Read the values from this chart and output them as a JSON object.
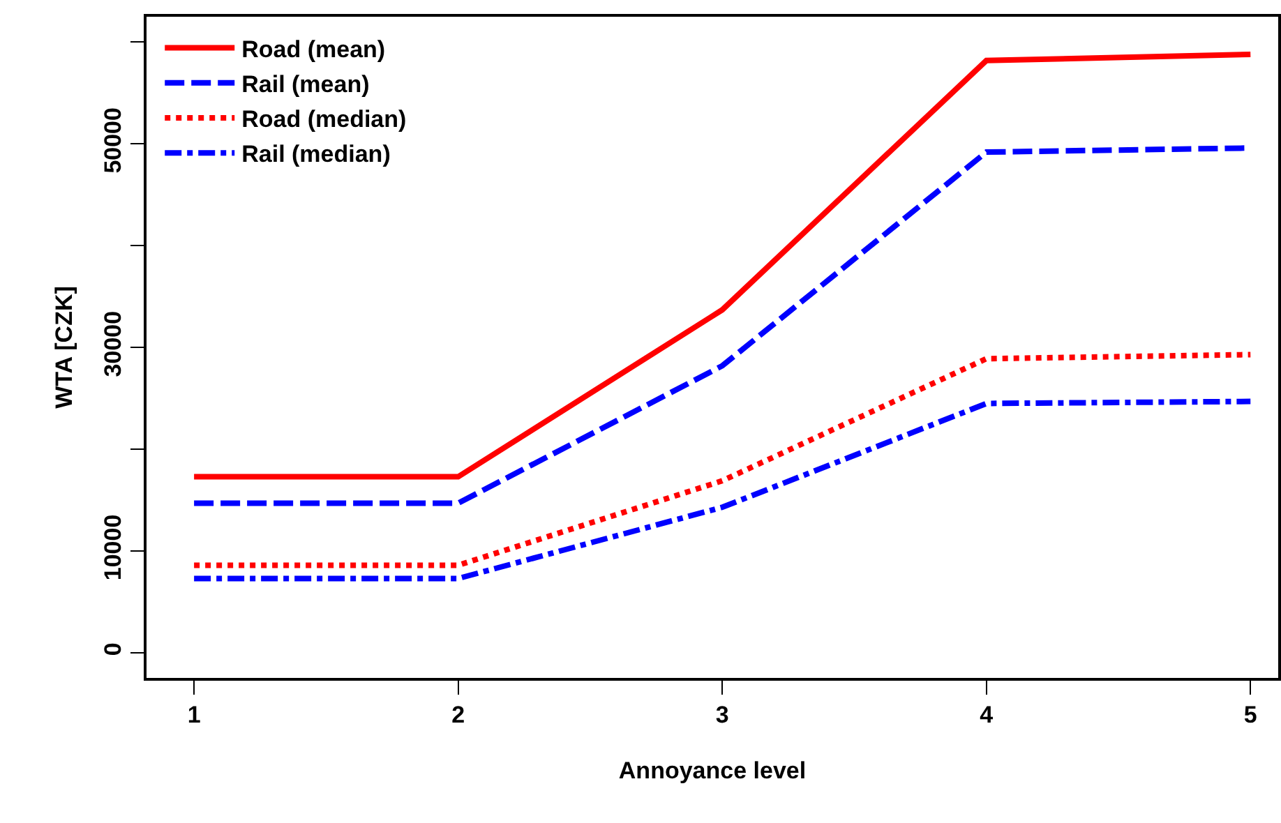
{
  "chart_data": {
    "type": "line",
    "xlabel": "Annoyance level",
    "ylabel": "WTA [CZK]",
    "x": [
      1,
      2,
      3,
      4,
      5
    ],
    "series": [
      {
        "name": "Road (mean)",
        "color": "#ff0000",
        "line_style": "solid",
        "values": [
          17300,
          17300,
          33700,
          58200,
          58800
        ]
      },
      {
        "name": "Rail (mean)",
        "color": "#0000ff",
        "line_style": "dashed",
        "values": [
          14700,
          14700,
          28200,
          49200,
          49600
        ]
      },
      {
        "name": "Road (median)",
        "color": "#ff0000",
        "line_style": "dotted",
        "values": [
          8600,
          8600,
          16900,
          28900,
          29300
        ]
      },
      {
        "name": "Rail (median)",
        "color": "#0000ff",
        "line_style": "dashdot",
        "values": [
          7300,
          7300,
          14300,
          24500,
          24700
        ]
      }
    ],
    "xlim": [
      0.82,
      5.105
    ],
    "xticks": [
      1,
      2,
      3,
      4,
      5
    ],
    "ylim": [
      -2470,
      62500
    ],
    "yticks": [
      0,
      10000,
      {
        "value": 20000,
        "label": null
      },
      30000,
      {
        "value": 40000,
        "label": null
      },
      50000,
      {
        "value": 60000,
        "label": null
      }
    ],
    "legend": "top left",
    "marker": "none"
  }
}
